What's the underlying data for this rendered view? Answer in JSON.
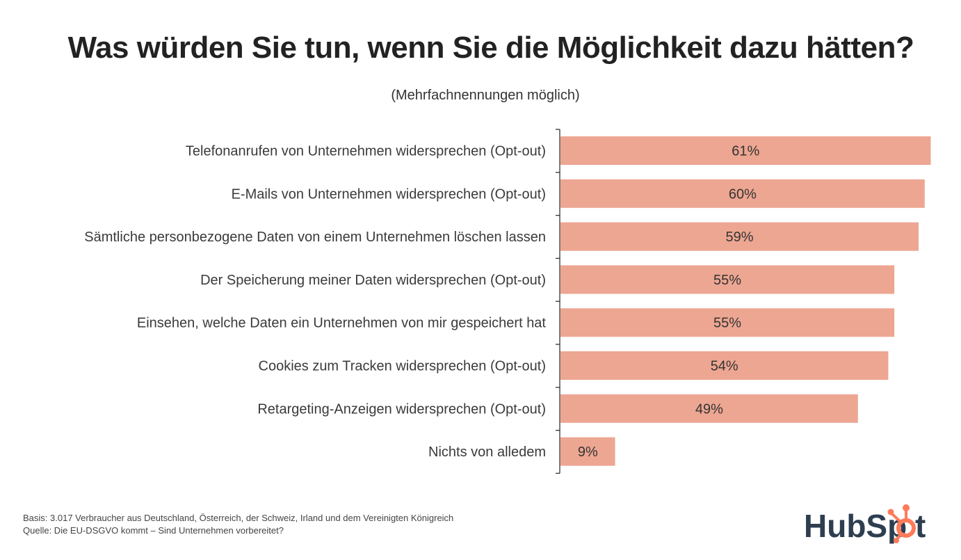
{
  "chart_data": {
    "type": "bar",
    "orientation": "horizontal",
    "title": "Was würden Sie tun, wenn Sie die Möglichkeit dazu hätten?",
    "subtitle": "(Mehrfachnennungen möglich)",
    "xlabel": "",
    "ylabel": "",
    "categories": [
      "Telefonanrufen von Unternehmen widersprechen (Opt-out)",
      "E-Mails von Unternehmen widersprechen (Opt-out)",
      "Sämtliche personbezogene Daten von einem Unternehmen löschen lassen",
      "Der Speicherung meiner Daten widersprechen (Opt-out)",
      "Einsehen, welche Daten ein Unternehmen von mir gespeichert hat",
      "Cookies zum Tracken widersprechen (Opt-out)",
      "Retargeting-Anzeigen widersprechen (Opt-out)",
      "Nichts von alledem"
    ],
    "values": [
      61,
      60,
      59,
      55,
      55,
      54,
      49,
      9
    ],
    "value_labels": [
      "61%",
      "60%",
      "59%",
      "55%",
      "55%",
      "54%",
      "49%",
      "9%"
    ],
    "unit": "%",
    "xlim": [
      0,
      61
    ],
    "grid": false,
    "legend": "none",
    "bar_color": "#EDA692",
    "axis_color": "#333333"
  },
  "footer": {
    "basis": "Basis: 3.017 Verbraucher aus Deutschland, Österreich, der Schweiz, Irland und dem Vereinigten Königreich",
    "source": "Quelle: Die EU-DSGVO kommt – Sind Unternehmen vorbereitet?"
  },
  "logo": {
    "text_before": "HubSp",
    "text_after": "t",
    "primary_color": "#2D3E50",
    "accent_color": "#FF7A59"
  }
}
